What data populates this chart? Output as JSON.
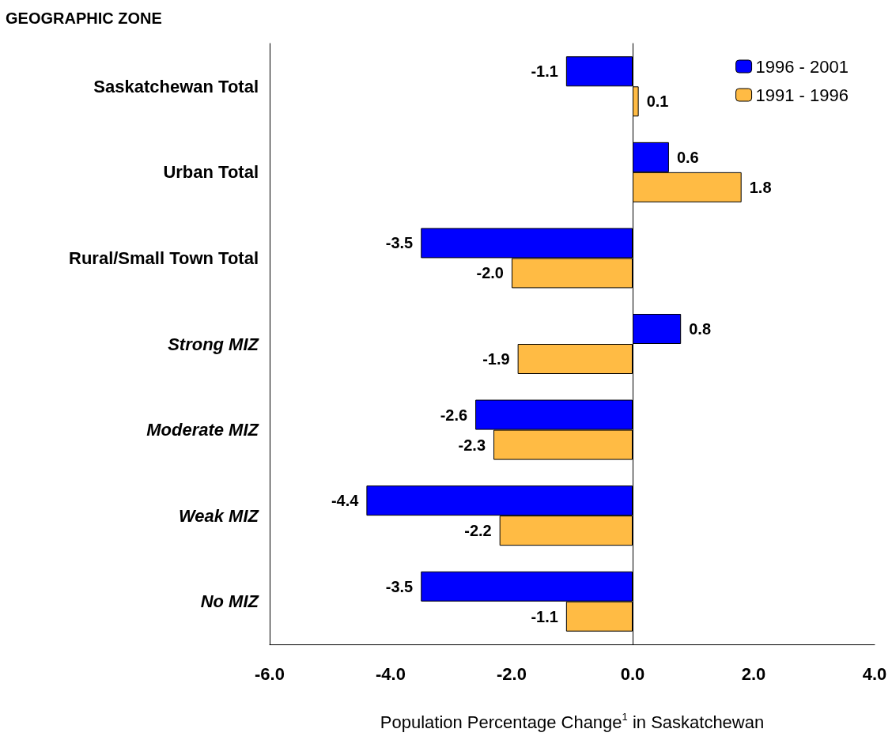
{
  "chart_data": {
    "type": "bar",
    "orientation": "horizontal",
    "ylabel": "GEOGRAPHIC ZONE",
    "xlabel": "Population Percentage Change$^{1}$ in Saskatchewan",
    "categories": [
      "Saskatchewan Total",
      "Urban Total",
      "Rural/Small Town Total",
      "Strong MIZ",
      "Moderate MIZ",
      "Weak MIZ",
      "No MIZ"
    ],
    "series": [
      {
        "name": "1996 - 2001",
        "color": "#0000ff",
        "values": [
          -1.1,
          0.6,
          -3.5,
          0.8,
          -2.6,
          -4.4,
          -3.5
        ],
        "value_labels": [
          "-1.1",
          "0.6",
          "-3.5",
          "0.8",
          "-2.6",
          "-4.4",
          "-3.5"
        ]
      },
      {
        "name": "1991 - 1996",
        "color": "#ffbb44",
        "values": [
          0.1,
          1.8,
          -2.0,
          -1.9,
          -2.3,
          -2.2,
          -1.1
        ],
        "value_labels": [
          "0.1",
          "1.8",
          "-2.0",
          "-1.9",
          "-2.3",
          "-2.2",
          "-1.1"
        ]
      }
    ],
    "xlim": [
      -6,
      4
    ],
    "xticks": [
      {
        "value": -6,
        "label": "-6.0"
      },
      {
        "value": -4,
        "label": "-4.0"
      },
      {
        "value": -2,
        "label": "-2.0"
      },
      {
        "value": 0,
        "label": "0.0"
      },
      {
        "value": 2,
        "label": "2.0"
      },
      {
        "value": 4,
        "label": "4.0"
      }
    ],
    "legend": "top right"
  }
}
